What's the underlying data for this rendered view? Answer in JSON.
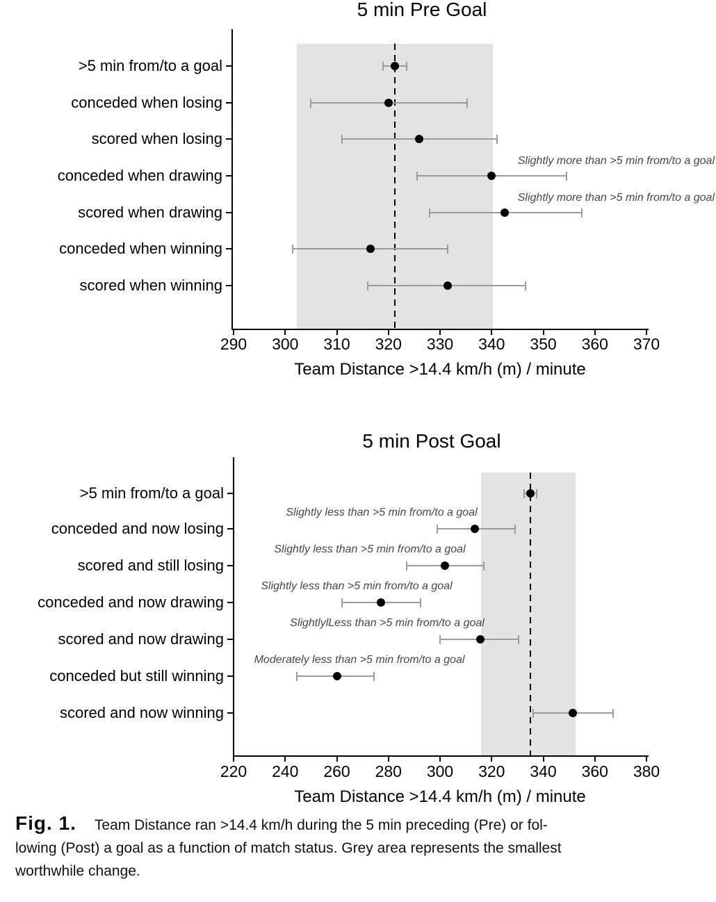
{
  "figure_caption": {
    "label": "Fig. 1.",
    "line1": "Team Distance ran >14.4 km/h during the 5 min preceding (Pre) or fol-",
    "line2": "lowing (Post) a goal as a function of match status. Grey area represents the smallest",
    "line3": "worthwhile change."
  },
  "chart_data": [
    {
      "type": "scatter",
      "title": "5 min Pre Goal",
      "xlabel": "Team Distance >14.4 km/h (m) / minute",
      "ylabel": "",
      "xlim": [
        290,
        370
      ],
      "x_ticks": [
        290,
        300,
        310,
        320,
        330,
        340,
        350,
        360,
        370
      ],
      "grid": false,
      "legend": null,
      "reference_line_x": 321.3,
      "swc_band": [
        302.3,
        340.2
      ],
      "categories": [
        ">5 min from/to a goal",
        "conceded when losing",
        "scored when losing",
        "conceded when drawing",
        "scored when drawing",
        "conceded when winning",
        "scored when winning"
      ],
      "points": [
        {
          "label": ">5 min from/to a goal",
          "mean": 321.3,
          "ci_low": 319.0,
          "ci_high": 323.5
        },
        {
          "label": "conceded when losing",
          "mean": 320.0,
          "ci_low": 305.0,
          "ci_high": 335.3
        },
        {
          "label": "scored when losing",
          "mean": 326.0,
          "ci_low": 311.0,
          "ci_high": 341.0
        },
        {
          "label": "conceded when drawing",
          "mean": 340.0,
          "ci_low": 325.5,
          "ci_high": 354.5,
          "note": "Slightly more than >5 min from/to a goal"
        },
        {
          "label": "scored when drawing",
          "mean": 342.5,
          "ci_low": 328.0,
          "ci_high": 357.5,
          "note": "Slightly more than >5 min from/to a goal"
        },
        {
          "label": "conceded when winning",
          "mean": 316.5,
          "ci_low": 301.5,
          "ci_high": 331.5
        },
        {
          "label": "scored when winning",
          "mean": 331.5,
          "ci_low": 316.0,
          "ci_high": 346.5
        }
      ]
    },
    {
      "type": "scatter",
      "title": "5 min Post Goal",
      "xlabel": "Team Distance >14.4 km/h (m) / minute",
      "ylabel": "",
      "xlim": [
        220,
        380
      ],
      "x_ticks": [
        220,
        240,
        260,
        280,
        300,
        320,
        340,
        360,
        380
      ],
      "grid": false,
      "legend": null,
      "reference_line_x": 335.0,
      "swc_band": [
        316.0,
        352.5
      ],
      "categories": [
        ">5 min from/to a goal",
        "conceded and now losing",
        "scored and still losing",
        "conceded and now drawing",
        "scored and now drawing",
        "conceded but still winning",
        "scored and now winning"
      ],
      "points": [
        {
          "label": ">5 min from/to a goal",
          "mean": 335.0,
          "ci_low": 332.5,
          "ci_high": 337.5
        },
        {
          "label": "conceded and now losing",
          "mean": 313.5,
          "ci_low": 299.0,
          "ci_high": 329.0,
          "note": "Slightly less than >5 min from/to a goal"
        },
        {
          "label": "scored and still losing",
          "mean": 302.0,
          "ci_low": 287.0,
          "ci_high": 317.0,
          "note": "Slightly less than >5 min from/to a goal"
        },
        {
          "label": "conceded and now drawing",
          "mean": 277.0,
          "ci_low": 262.0,
          "ci_high": 292.5,
          "note": "Slightly less than >5 min from/to a goal"
        },
        {
          "label": "scored and now drawing",
          "mean": 315.5,
          "ci_low": 300.0,
          "ci_high": 330.5,
          "note": "SlightlylLess than >5 min from/to a goal"
        },
        {
          "label": "conceded but still winning",
          "mean": 260.0,
          "ci_low": 244.5,
          "ci_high": 274.5,
          "note": "Moderately less than >5 min from/to a goal"
        },
        {
          "label": "scored and now winning",
          "mean": 351.5,
          "ci_low": 336.0,
          "ci_high": 367.0
        }
      ]
    }
  ]
}
